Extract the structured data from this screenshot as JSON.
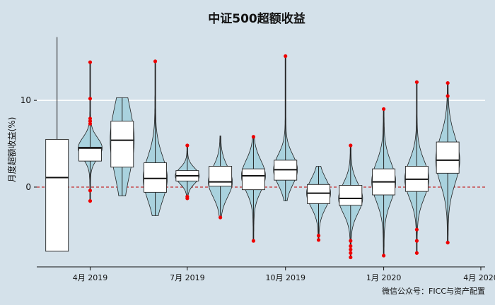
{
  "chart_data": {
    "type": "box-violin",
    "title": "中证500超额收益",
    "ylabel": "月度超额收益(%)",
    "xlabel": "",
    "ylim": [
      -9.2,
      17.5
    ],
    "xlim": [
      "2019-02-10",
      "2020-04-05"
    ],
    "grid": {
      "y_major": true,
      "x_major": false
    },
    "reference_line": {
      "y": 0,
      "style": "dashed",
      "color": "#c00000"
    },
    "y_ticks": [
      0,
      10
    ],
    "x_ticks": [
      {
        "date": "2019-04-01",
        "label": "4月 2019"
      },
      {
        "date": "2019-07-01",
        "label": "7月 2019"
      },
      {
        "date": "2019-10-01",
        "label": "10月 2019"
      },
      {
        "date": "2020-01-01",
        "label": "1月 2020"
      },
      {
        "date": "2020-04-01",
        "label": "4月 2020"
      }
    ],
    "series": [
      {
        "month": "2019-03",
        "x": "2019-03-01",
        "q1": -7.4,
        "median": 1.1,
        "q3": 5.5,
        "min": -7.4,
        "max": 17.3,
        "violin": false,
        "outliers": []
      },
      {
        "month": "2019-04",
        "x": "2019-04-01",
        "q1": 3.0,
        "median": 4.5,
        "q3": 4.6,
        "min": -1.6,
        "max": 14.4,
        "violin": true,
        "outliers": [
          14.4,
          10.2,
          7.9,
          7.6,
          7.3,
          -0.4,
          -1.6
        ]
      },
      {
        "month": "2019-05",
        "x": "2019-05-01",
        "q1": 2.3,
        "median": 5.4,
        "q3": 7.6,
        "min": -1.0,
        "max": 10.3,
        "violin": true,
        "outliers": []
      },
      {
        "month": "2019-06",
        "x": "2019-06-01",
        "q1": -0.6,
        "median": 1.0,
        "q3": 2.8,
        "min": -3.3,
        "max": 14.5,
        "violin": true,
        "outliers": [
          14.5
        ]
      },
      {
        "month": "2019-07",
        "x": "2019-07-01",
        "q1": 0.7,
        "median": 1.3,
        "q3": 1.9,
        "min": -1.3,
        "max": 4.8,
        "violin": true,
        "outliers": [
          4.8,
          -1.1,
          -1.3
        ]
      },
      {
        "month": "2019-08",
        "x": "2019-08-01",
        "q1": 0.1,
        "median": 0.6,
        "q3": 2.4,
        "min": -3.5,
        "max": 5.9,
        "violin": true,
        "outliers": [
          -3.5
        ]
      },
      {
        "month": "2019-09",
        "x": "2019-09-01",
        "q1": -0.3,
        "median": 1.3,
        "q3": 2.1,
        "min": -6.2,
        "max": 5.8,
        "violin": true,
        "outliers": [
          5.8,
          -6.2
        ]
      },
      {
        "month": "2019-10",
        "x": "2019-10-01",
        "q1": 0.8,
        "median": 2.0,
        "q3": 3.1,
        "min": -1.6,
        "max": 15.1,
        "violin": true,
        "outliers": [
          15.1
        ]
      },
      {
        "month": "2019-11",
        "x": "2019-11-01",
        "q1": -1.9,
        "median": -0.7,
        "q3": 0.3,
        "min": -6.1,
        "max": 2.4,
        "violin": true,
        "outliers": [
          -5.6,
          -6.1
        ]
      },
      {
        "month": "2019-12",
        "x": "2019-12-01",
        "q1": -2.1,
        "median": -1.3,
        "q3": 0.2,
        "min": -8.1,
        "max": 4.8,
        "violin": true,
        "outliers": [
          4.8,
          -6.2,
          -6.8,
          -7.2,
          -7.6,
          -8.1
        ]
      },
      {
        "month": "2020-01",
        "x": "2020-01-01",
        "q1": -0.9,
        "median": 0.6,
        "q3": 2.1,
        "min": -7.9,
        "max": 9.0,
        "violin": true,
        "outliers": [
          9.0,
          -7.9
        ]
      },
      {
        "month": "2020-02",
        "x": "2020-02-01",
        "q1": -0.5,
        "median": 0.9,
        "q3": 2.4,
        "min": -7.6,
        "max": 12.1,
        "violin": true,
        "outliers": [
          12.1,
          -4.9,
          -6.2,
          -7.6
        ]
      },
      {
        "month": "2020-03",
        "x": "2020-03-01",
        "q1": 1.6,
        "median": 3.1,
        "q3": 5.2,
        "min": -6.4,
        "max": 12.0,
        "violin": true,
        "outliers": [
          12.0,
          10.5,
          -6.4
        ]
      }
    ]
  },
  "watermark": "微信公众号：FICC与资产配置",
  "colors": {
    "background": "#d4e1ea",
    "violin_fill": "#a9d2de",
    "box_fill": "#ffffff",
    "outlier": "#ee0000",
    "grid": "#ffffff",
    "zero_line": "#c00000"
  }
}
